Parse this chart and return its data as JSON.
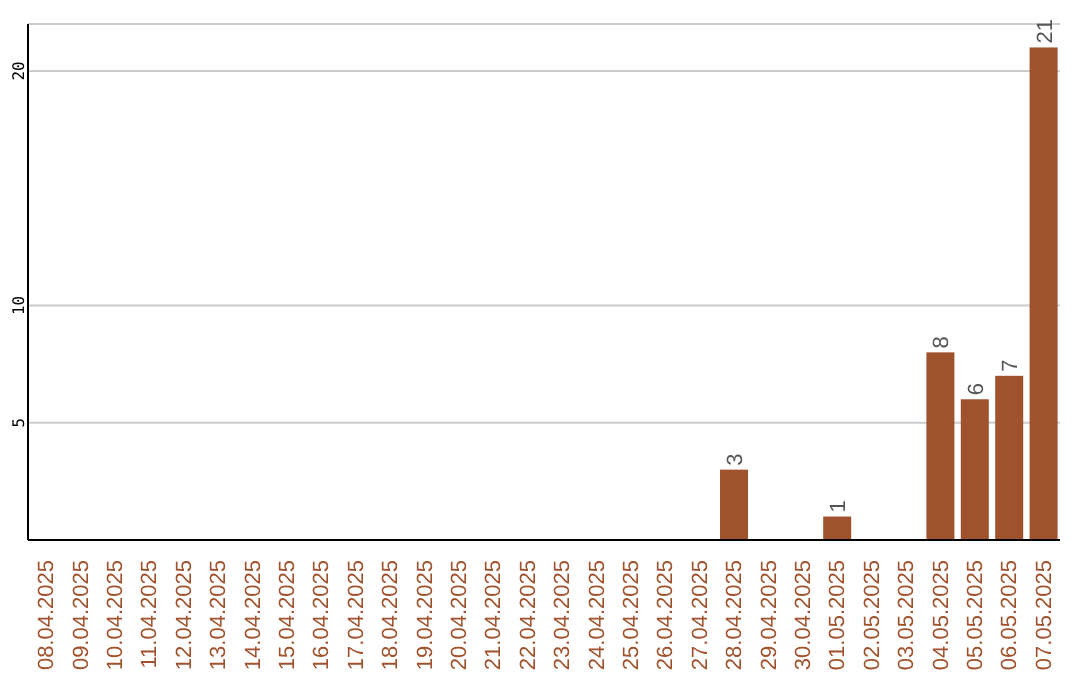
{
  "chart_data": {
    "type": "bar",
    "categories": [
      "08.04.2025",
      "09.04.2025",
      "10.04.2025",
      "11.04.2025",
      "12.04.2025",
      "13.04.2025",
      "14.04.2025",
      "15.04.2025",
      "16.04.2025",
      "17.04.2025",
      "18.04.2025",
      "19.04.2025",
      "20.04.2025",
      "21.04.2025",
      "22.04.2025",
      "23.04.2025",
      "24.04.2025",
      "25.04.2025",
      "26.04.2025",
      "27.04.2025",
      "28.04.2025",
      "29.04.2025",
      "30.04.2025",
      "01.05.2025",
      "02.05.2025",
      "03.05.2025",
      "04.05.2025",
      "05.05.2025",
      "06.05.2025",
      "07.05.2025"
    ],
    "values": [
      0,
      0,
      0,
      0,
      0,
      0,
      0,
      0,
      0,
      0,
      0,
      0,
      0,
      0,
      0,
      0,
      0,
      0,
      0,
      0,
      3,
      0,
      0,
      1,
      0,
      0,
      8,
      6,
      7,
      21
    ],
    "value_labels": [
      null,
      null,
      null,
      null,
      null,
      null,
      null,
      null,
      null,
      null,
      null,
      null,
      null,
      null,
      null,
      null,
      null,
      null,
      null,
      null,
      "3",
      null,
      null,
      "1",
      null,
      null,
      "8",
      "6",
      "7",
      "21"
    ],
    "color": "#a0522d",
    "ylim": [
      0,
      22
    ],
    "yticks": [
      5,
      10,
      20
    ],
    "grid": "y"
  }
}
